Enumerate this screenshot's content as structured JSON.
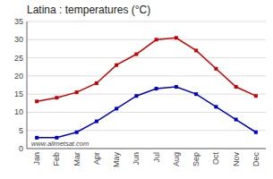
{
  "chart_data": {
    "type": "line",
    "title": "Latina : temperatures (°C)",
    "categories": [
      "Jan",
      "Feb",
      "Mar",
      "Apr",
      "May",
      "Jun",
      "Jul",
      "Aug",
      "Sep",
      "Oct",
      "Nov",
      "Dec"
    ],
    "series": [
      {
        "color": "#cc0000",
        "values": [
          13,
          14,
          15.5,
          18,
          23,
          26,
          30,
          30.5,
          27,
          22,
          17,
          14.5
        ]
      },
      {
        "color": "#0000cc",
        "values": [
          3,
          3,
          4.5,
          7.5,
          11,
          14.5,
          16.5,
          17,
          15,
          11.5,
          8,
          4.5
        ]
      }
    ],
    "ylim": [
      0,
      35
    ],
    "yticks": [
      0,
      5,
      10,
      15,
      20,
      25,
      30,
      35
    ],
    "grid": true,
    "marker": "square",
    "annotations": [
      "www.allmetsat.com"
    ]
  }
}
